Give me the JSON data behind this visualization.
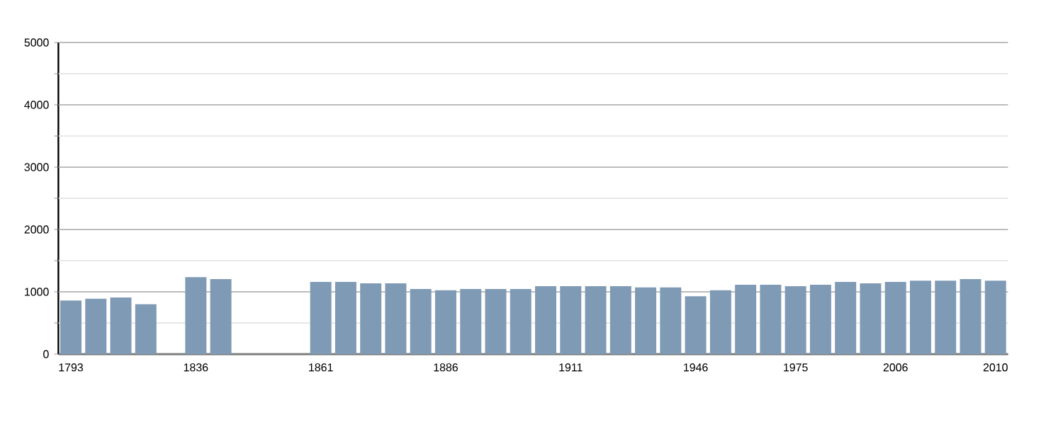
{
  "chart_data": {
    "type": "bar",
    "categories": [
      "1793",
      null,
      null,
      null,
      null,
      "1836",
      null,
      null,
      null,
      null,
      "1861",
      null,
      null,
      null,
      null,
      "1886",
      null,
      null,
      null,
      null,
      "1911",
      null,
      null,
      null,
      null,
      "1946",
      null,
      null,
      null,
      "1975",
      null,
      null,
      null,
      "2006",
      null,
      null,
      null,
      "2010"
    ],
    "values": [
      860,
      890,
      910,
      800,
      null,
      1235,
      1205,
      null,
      null,
      null,
      1160,
      1160,
      1135,
      1135,
      1045,
      1025,
      1045,
      1045,
      1045,
      1090,
      1090,
      1090,
      1090,
      1070,
      1070,
      930,
      1025,
      1115,
      1115,
      1090,
      1115,
      1160,
      1135,
      1160,
      1180,
      1180,
      1205,
      1180
    ],
    "color": "#7f9ab5",
    "ylim": [
      0,
      5000
    ],
    "yticks": [
      0,
      {
        "value": 500,
        "label": null
      },
      1000,
      {
        "value": 1500,
        "label": null
      },
      2000,
      {
        "value": 2500,
        "label": null
      },
      3000,
      {
        "value": 3500,
        "label": null
      },
      4000,
      {
        "value": 4500,
        "label": null
      },
      5000
    ],
    "grid": "y"
  }
}
